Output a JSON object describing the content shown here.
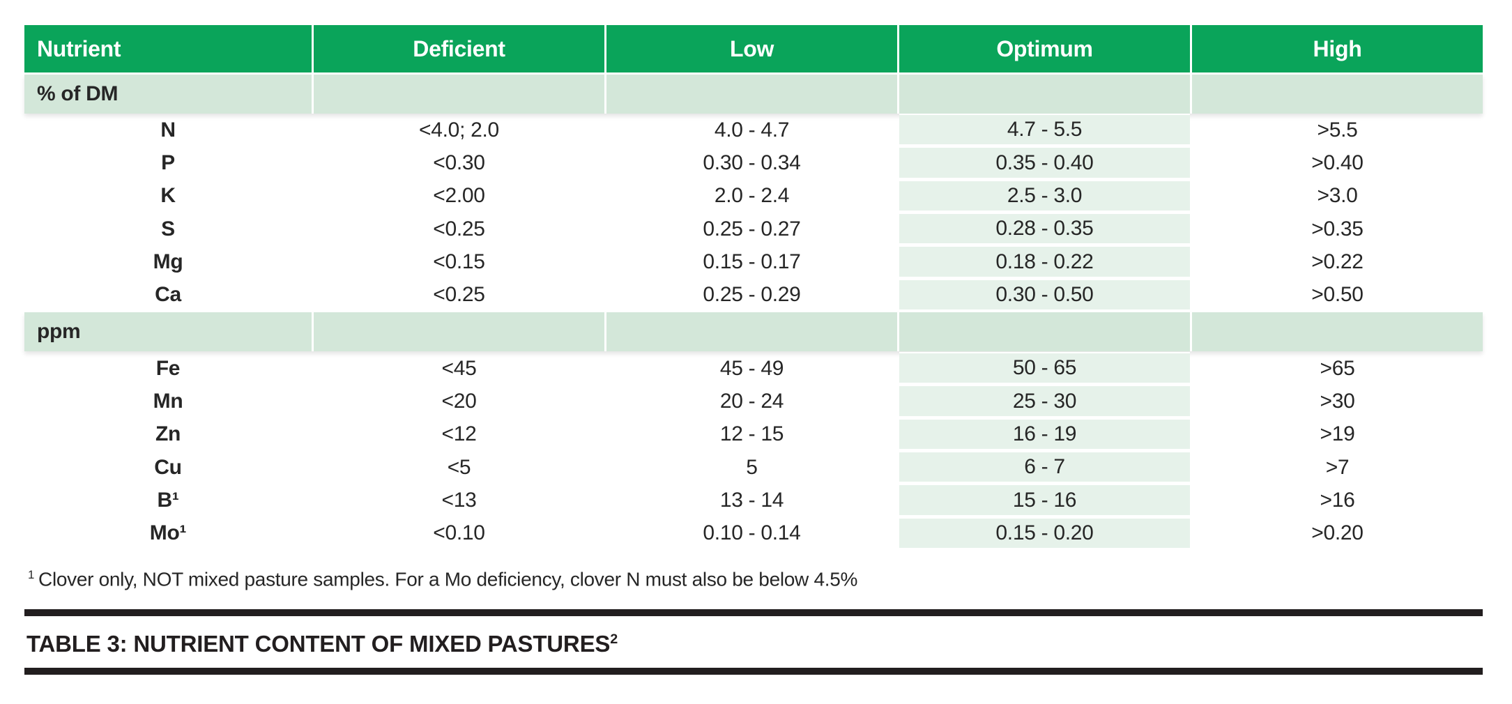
{
  "colors": {
    "page_bg": "#ffffff",
    "header_green": "#0aa45a",
    "band_green": "#d3e7d9",
    "optimum_green": "#e6f2ea",
    "text": "#262626",
    "rule": "#221e1f",
    "header_text": "#ffffff"
  },
  "table": {
    "columns": [
      {
        "label": "Nutrient"
      },
      {
        "label": "Deficient"
      },
      {
        "label": "Low"
      },
      {
        "label": "Optimum"
      },
      {
        "label": "High"
      }
    ],
    "sections": [
      {
        "label": "% of DM",
        "rows": [
          {
            "nutrient": "N",
            "deficient": "<4.0; 2.0",
            "low": "4.0 - 4.7",
            "optimum": "4.7 - 5.5",
            "high": ">5.5"
          },
          {
            "nutrient": "P",
            "deficient": "<0.30",
            "low": "0.30 - 0.34",
            "optimum": "0.35 - 0.40",
            "high": ">0.40"
          },
          {
            "nutrient": "K",
            "deficient": "<2.00",
            "low": "2.0 - 2.4",
            "optimum": "2.5 - 3.0",
            "high": ">3.0"
          },
          {
            "nutrient": "S",
            "deficient": "<0.25",
            "low": "0.25 - 0.27",
            "optimum": "0.28 - 0.35",
            "high": ">0.35"
          },
          {
            "nutrient": "Mg",
            "deficient": "<0.15",
            "low": "0.15 - 0.17",
            "optimum": "0.18 - 0.22",
            "high": ">0.22"
          },
          {
            "nutrient": "Ca",
            "deficient": "<0.25",
            "low": "0.25 - 0.29",
            "optimum": "0.30 - 0.50",
            "high": ">0.50"
          }
        ]
      },
      {
        "label": "ppm",
        "rows": [
          {
            "nutrient": "Fe",
            "deficient": "<45",
            "low": "45 - 49",
            "optimum": "50 - 65",
            "high": ">65"
          },
          {
            "nutrient": "Mn",
            "deficient": "<20",
            "low": "20 - 24",
            "optimum": "25 - 30",
            "high": ">30"
          },
          {
            "nutrient": "Zn",
            "deficient": "<12",
            "low": "12 - 15",
            "optimum": "16 - 19",
            "high": ">19"
          },
          {
            "nutrient": "Cu",
            "deficient": "<5",
            "low": "5",
            "optimum": "6 - 7",
            "high": ">7"
          },
          {
            "nutrient": "B¹",
            "deficient": "<13",
            "low": "13 - 14",
            "optimum": "15 - 16",
            "high": ">16"
          },
          {
            "nutrient": "Mo¹",
            "deficient": "<0.10",
            "low": "0.10 - 0.14",
            "optimum": "0.15 - 0.20",
            "high": ">0.20"
          }
        ]
      }
    ]
  },
  "footnote": {
    "marker": "1",
    "text": "Clover only, NOT mixed pasture samples. For a Mo deficiency, clover N must also be below 4.5%"
  },
  "caption": {
    "text": "TABLE 3: NUTRIENT CONTENT OF MIXED PASTURES",
    "superscript": "2"
  },
  "chart_data": {
    "type": "table",
    "title": "TABLE 3: NUTRIENT CONTENT OF MIXED PASTURES²",
    "columns": [
      "Nutrient",
      "Deficient",
      "Low",
      "Optimum",
      "High"
    ],
    "rows": [
      [
        "% of DM",
        "",
        "",
        "",
        ""
      ],
      [
        "N",
        "<4.0; 2.0",
        "4.0 - 4.7",
        "4.7 - 5.5",
        ">5.5"
      ],
      [
        "P",
        "<0.30",
        "0.30 - 0.34",
        "0.35 - 0.40",
        ">0.40"
      ],
      [
        "K",
        "<2.00",
        "2.0 - 2.4",
        "2.5 - 3.0",
        ">3.0"
      ],
      [
        "S",
        "<0.25",
        "0.25 - 0.27",
        "0.28 - 0.35",
        ">0.35"
      ],
      [
        "Mg",
        "<0.15",
        "0.15 - 0.17",
        "0.18 - 0.22",
        ">0.22"
      ],
      [
        "Ca",
        "<0.25",
        "0.25 - 0.29",
        "0.30 - 0.50",
        ">0.50"
      ],
      [
        "ppm",
        "",
        "",
        "",
        ""
      ],
      [
        "Fe",
        "<45",
        "45 - 49",
        "50 - 65",
        ">65"
      ],
      [
        "Mn",
        "<20",
        "20 - 24",
        "25 - 30",
        ">30"
      ],
      [
        "Zn",
        "<12",
        "12 - 15",
        "16 - 19",
        ">19"
      ],
      [
        "Cu",
        "<5",
        "5",
        "6 - 7",
        ">7"
      ],
      [
        "B¹",
        "<13",
        "13 - 14",
        "15 - 16",
        ">16"
      ],
      [
        "Mo¹",
        "<0.10",
        "0.10 - 0.14",
        "0.15 - 0.20",
        ">0.20"
      ]
    ],
    "footnote": "¹ Clover only, NOT mixed pasture samples. For a Mo deficiency, clover N must also be below 4.5%",
    "highlighted_column": "Optimum"
  }
}
